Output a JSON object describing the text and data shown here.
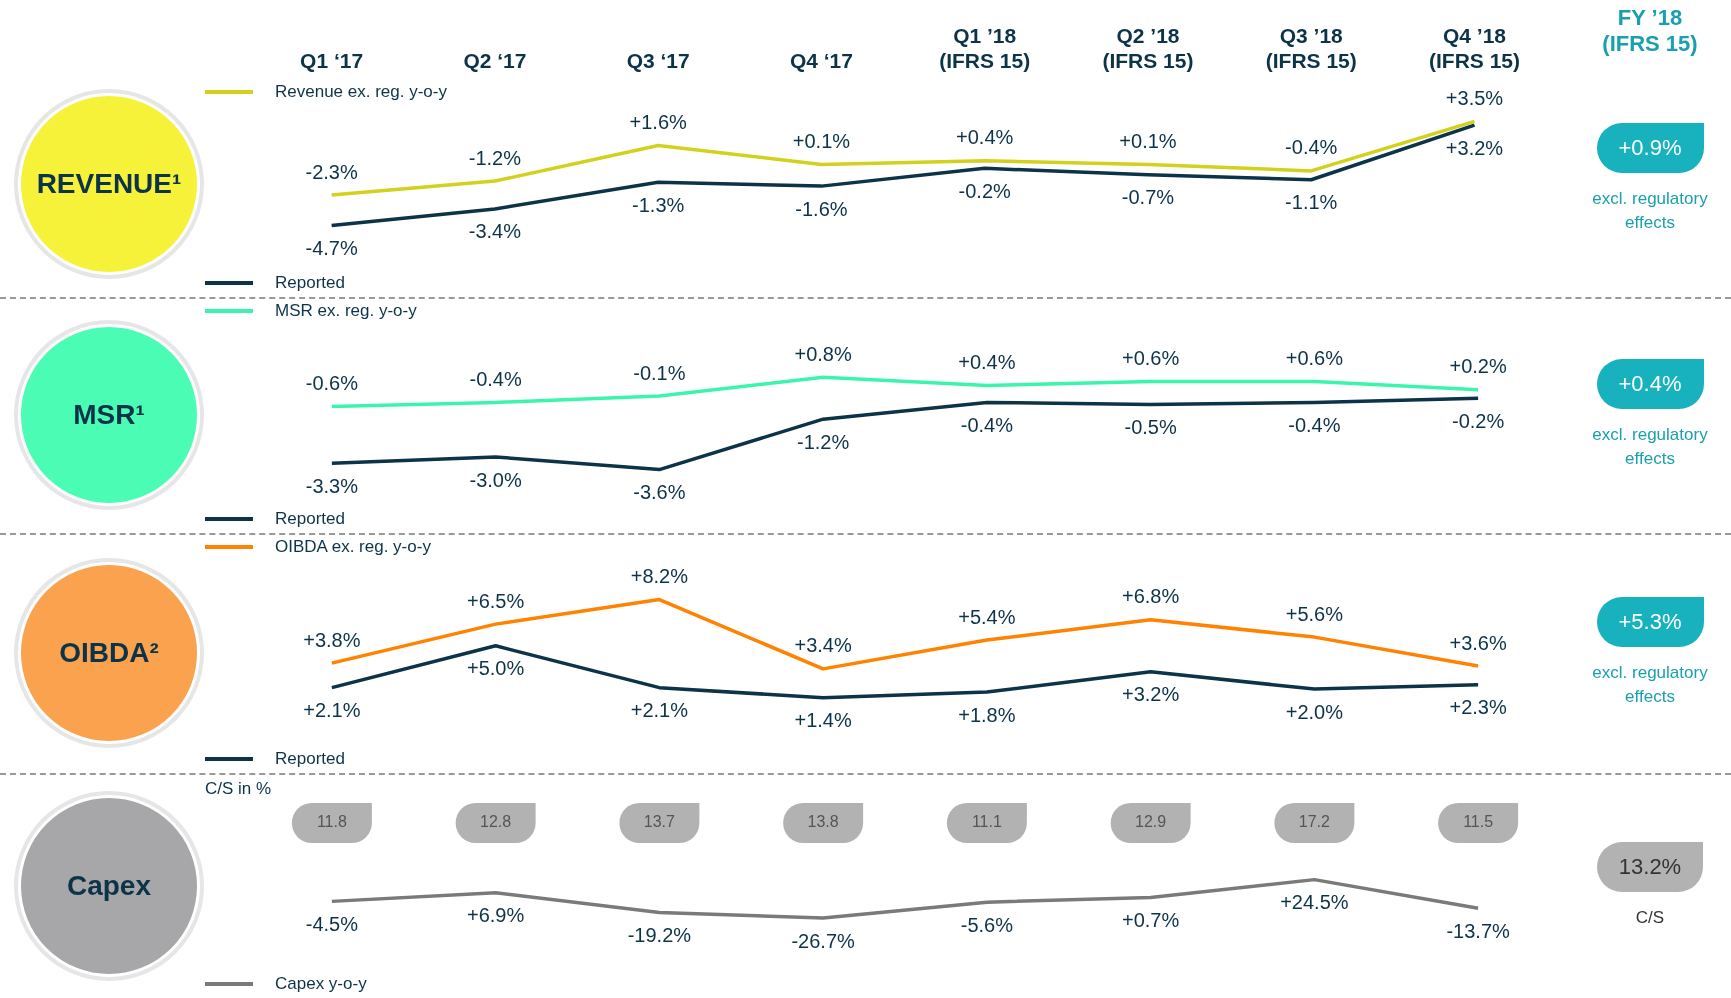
{
  "chart_data": [
    {
      "type": "line",
      "title": "REVENUE¹",
      "categories": [
        "Q1 ‘17",
        "Q2 ‘17",
        "Q3 ‘17",
        "Q4 ‘17",
        "Q1 ’18\n(IFRS 15)",
        "Q2 ’18\n(IFRS 15)",
        "Q3 ’18\n(IFRS 15)",
        "Q4 ’18\n(IFRS 15)"
      ],
      "tick_labels": "x",
      "legend": "left",
      "annotations": [
        "FY ’18\n(IFRS 15)",
        "+0.9%",
        "excl. regulatory effects"
      ],
      "series": [
        {
          "name": "Revenue ex. reg. y-o-y",
          "color": "#d2d21e",
          "values": [
            -2.3,
            -1.2,
            1.6,
            0.1,
            0.4,
            0.1,
            -0.4,
            3.5
          ],
          "value_labels": [
            "-2.3%",
            "-1.2%",
            "+1.6%",
            "+0.1%",
            "+0.4%",
            "+0.1%",
            "-0.4%",
            "+3.5%"
          ]
        },
        {
          "name": "Reported",
          "color": "#0d3349",
          "values": [
            -4.7,
            -3.4,
            -1.3,
            -1.6,
            -0.2,
            -0.7,
            -1.1,
            3.2
          ],
          "value_labels": [
            "-4.7%",
            "-3.4%",
            "-1.3%",
            "-1.6%",
            "-0.2%",
            "-0.7%",
            "-1.1%",
            "+3.2%"
          ]
        }
      ]
    },
    {
      "type": "line",
      "title": "MSR¹",
      "categories": [
        null,
        null,
        null,
        null,
        null,
        null,
        null,
        null
      ],
      "tick_labels": false,
      "legend": "left",
      "annotations": [
        "+0.4%",
        "excl. regulatory effects"
      ],
      "series": [
        {
          "name": "MSR ex. reg. y-o-y",
          "color": "#3cf5ac",
          "values": [
            -0.6,
            -0.4,
            -0.1,
            0.8,
            0.4,
            0.6,
            0.6,
            0.2
          ],
          "value_labels": [
            "-0.6%",
            "-0.4%",
            "-0.1%",
            "+0.8%",
            "+0.4%",
            "+0.6%",
            "+0.6%",
            "+0.2%"
          ]
        },
        {
          "name": "Reported",
          "color": "#0d3349",
          "values": [
            -3.3,
            -3.0,
            -3.6,
            -1.2,
            -0.4,
            -0.5,
            -0.4,
            -0.2
          ],
          "value_labels": [
            "-3.3%",
            "-3.0%",
            "-3.6%",
            "-1.2%",
            "-0.4%",
            "-0.5%",
            "-0.4%",
            "-0.2%"
          ]
        }
      ]
    },
    {
      "type": "line",
      "title": "OIBDA²",
      "categories": [
        null,
        null,
        null,
        null,
        null,
        null,
        null,
        null
      ],
      "tick_labels": false,
      "legend": "left",
      "annotations": [
        "+5.3%",
        "excl. regulatory effects"
      ],
      "series": [
        {
          "name": "OIBDA ex. reg. y-o-y",
          "color": "#ff8200",
          "values": [
            3.8,
            6.5,
            8.2,
            3.4,
            5.4,
            6.8,
            5.6,
            3.6
          ],
          "value_labels": [
            "+3.8%",
            "+6.5%",
            "+8.2%",
            "+3.4%",
            "+5.4%",
            "+6.8%",
            "+5.6%",
            "+3.6%"
          ]
        },
        {
          "name": "Reported",
          "color": "#0d3349",
          "values": [
            2.1,
            5.0,
            2.1,
            1.4,
            1.8,
            3.2,
            2.0,
            2.3
          ],
          "value_labels": [
            "+2.1%",
            "+5.0%",
            "+2.1%",
            "+1.4%",
            "+1.8%",
            "+3.2%",
            "+2.0%",
            "+2.3%"
          ]
        }
      ]
    },
    {
      "type": "line",
      "title": "Capex",
      "ylabel": "C/S in %",
      "categories": [
        null,
        null,
        null,
        null,
        null,
        null,
        null,
        null
      ],
      "tick_labels": false,
      "legend": "bottom left",
      "annotations": [
        "11.8",
        "12.8",
        "13.7",
        "13.8",
        "11.1",
        "12.9",
        "17.2",
        "11.5",
        "13.2%",
        "C/S"
      ],
      "series": [
        {
          "name": "Capex y-o-y",
          "color": "#7a7a7a",
          "values": [
            -4.5,
            6.9,
            -19.2,
            -26.7,
            -5.6,
            0.7,
            24.5,
            -13.7
          ],
          "value_labels": [
            "-4.5%",
            "+6.9%",
            "-19.2%",
            "-26.7%",
            "-5.6%",
            "+0.7%",
            "+24.5%",
            "-13.7%"
          ]
        }
      ]
    }
  ]
}
